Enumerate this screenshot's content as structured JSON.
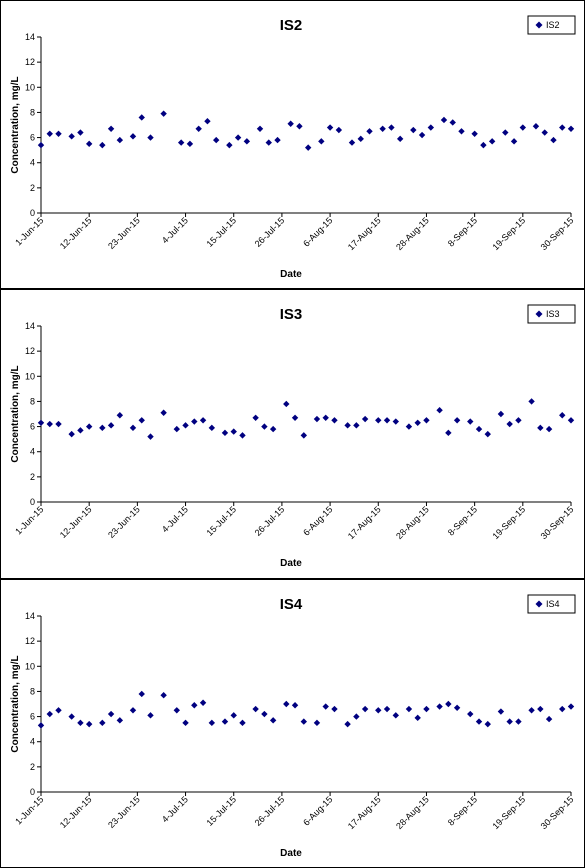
{
  "chart_data": [
    {
      "type": "scatter",
      "title": "IS2",
      "xlabel": "Date",
      "ylabel": "Concentration, mg/L",
      "series": [
        {
          "name": "IS2",
          "color": "#000080",
          "marker": "diamond"
        }
      ],
      "ylim": [
        0,
        14
      ],
      "yticks": [
        0,
        2,
        4,
        6,
        8,
        10,
        12,
        14
      ],
      "xlim": [
        "2015-06-01",
        "2015-09-30"
      ],
      "xtick_labels": [
        "1-Jun-15",
        "12-Jun-15",
        "23-Jun-15",
        "4-Jul-15",
        "15-Jul-15",
        "26-Jul-15",
        "6-Aug-15",
        "17-Aug-15",
        "28-Aug-15",
        "8-Sep-15",
        "19-Sep-15",
        "30-Sep-15"
      ],
      "grid": false,
      "legend_position": "top-right",
      "points": [
        {
          "x": "2015-06-01",
          "y": 5.4
        },
        {
          "x": "2015-06-03",
          "y": 6.3
        },
        {
          "x": "2015-06-05",
          "y": 6.3
        },
        {
          "x": "2015-06-08",
          "y": 6.1
        },
        {
          "x": "2015-06-10",
          "y": 6.4
        },
        {
          "x": "2015-06-12",
          "y": 5.5
        },
        {
          "x": "2015-06-15",
          "y": 5.4
        },
        {
          "x": "2015-06-17",
          "y": 6.7
        },
        {
          "x": "2015-06-19",
          "y": 5.8
        },
        {
          "x": "2015-06-22",
          "y": 6.1
        },
        {
          "x": "2015-06-24",
          "y": 7.6
        },
        {
          "x": "2015-06-26",
          "y": 6.0
        },
        {
          "x": "2015-06-29",
          "y": 7.9
        },
        {
          "x": "2015-07-03",
          "y": 5.6
        },
        {
          "x": "2015-07-05",
          "y": 5.5
        },
        {
          "x": "2015-07-07",
          "y": 6.7
        },
        {
          "x": "2015-07-09",
          "y": 7.3
        },
        {
          "x": "2015-07-11",
          "y": 5.8
        },
        {
          "x": "2015-07-14",
          "y": 5.4
        },
        {
          "x": "2015-07-16",
          "y": 6.0
        },
        {
          "x": "2015-07-18",
          "y": 5.7
        },
        {
          "x": "2015-07-21",
          "y": 6.7
        },
        {
          "x": "2015-07-23",
          "y": 5.6
        },
        {
          "x": "2015-07-25",
          "y": 5.8
        },
        {
          "x": "2015-07-28",
          "y": 7.1
        },
        {
          "x": "2015-07-30",
          "y": 6.9
        },
        {
          "x": "2015-08-01",
          "y": 5.2
        },
        {
          "x": "2015-08-04",
          "y": 5.7
        },
        {
          "x": "2015-08-06",
          "y": 6.8
        },
        {
          "x": "2015-08-08",
          "y": 6.6
        },
        {
          "x": "2015-08-11",
          "y": 5.6
        },
        {
          "x": "2015-08-13",
          "y": 5.9
        },
        {
          "x": "2015-08-15",
          "y": 6.5
        },
        {
          "x": "2015-08-18",
          "y": 6.7
        },
        {
          "x": "2015-08-20",
          "y": 6.8
        },
        {
          "x": "2015-08-22",
          "y": 5.9
        },
        {
          "x": "2015-08-25",
          "y": 6.6
        },
        {
          "x": "2015-08-27",
          "y": 6.2
        },
        {
          "x": "2015-08-29",
          "y": 6.8
        },
        {
          "x": "2015-09-01",
          "y": 7.4
        },
        {
          "x": "2015-09-03",
          "y": 7.2
        },
        {
          "x": "2015-09-05",
          "y": 6.5
        },
        {
          "x": "2015-09-08",
          "y": 6.3
        },
        {
          "x": "2015-09-10",
          "y": 5.4
        },
        {
          "x": "2015-09-12",
          "y": 5.7
        },
        {
          "x": "2015-09-15",
          "y": 6.4
        },
        {
          "x": "2015-09-17",
          "y": 5.7
        },
        {
          "x": "2015-09-19",
          "y": 6.8
        },
        {
          "x": "2015-09-22",
          "y": 6.9
        },
        {
          "x": "2015-09-24",
          "y": 6.4
        },
        {
          "x": "2015-09-26",
          "y": 5.8
        },
        {
          "x": "2015-09-28",
          "y": 6.8
        },
        {
          "x": "2015-09-30",
          "y": 6.7
        }
      ]
    },
    {
      "type": "scatter",
      "title": "IS3",
      "xlabel": "Date",
      "ylabel": "Concentration, mg/L",
      "series": [
        {
          "name": "IS3",
          "color": "#000080",
          "marker": "diamond"
        }
      ],
      "ylim": [
        0,
        14
      ],
      "yticks": [
        0,
        2,
        4,
        6,
        8,
        10,
        12,
        14
      ],
      "xlim": [
        "2015-06-01",
        "2015-09-30"
      ],
      "xtick_labels": [
        "1-Jun-15",
        "12-Jun-15",
        "23-Jun-15",
        "4-Jul-15",
        "15-Jul-15",
        "26-Jul-15",
        "6-Aug-15",
        "17-Aug-15",
        "28-Aug-15",
        "8-Sep-15",
        "19-Sep-15",
        "30-Sep-15"
      ],
      "grid": false,
      "legend_position": "top-right",
      "points": [
        {
          "x": "2015-06-01",
          "y": 6.3
        },
        {
          "x": "2015-06-03",
          "y": 6.2
        },
        {
          "x": "2015-06-05",
          "y": 6.2
        },
        {
          "x": "2015-06-08",
          "y": 5.4
        },
        {
          "x": "2015-06-10",
          "y": 5.7
        },
        {
          "x": "2015-06-12",
          "y": 6.0
        },
        {
          "x": "2015-06-15",
          "y": 5.9
        },
        {
          "x": "2015-06-17",
          "y": 6.1
        },
        {
          "x": "2015-06-19",
          "y": 6.9
        },
        {
          "x": "2015-06-22",
          "y": 5.9
        },
        {
          "x": "2015-06-24",
          "y": 6.5
        },
        {
          "x": "2015-06-26",
          "y": 5.2
        },
        {
          "x": "2015-06-29",
          "y": 7.1
        },
        {
          "x": "2015-07-02",
          "y": 5.8
        },
        {
          "x": "2015-07-04",
          "y": 6.1
        },
        {
          "x": "2015-07-06",
          "y": 6.4
        },
        {
          "x": "2015-07-08",
          "y": 6.5
        },
        {
          "x": "2015-07-10",
          "y": 5.9
        },
        {
          "x": "2015-07-13",
          "y": 5.5
        },
        {
          "x": "2015-07-15",
          "y": 5.6
        },
        {
          "x": "2015-07-17",
          "y": 5.3
        },
        {
          "x": "2015-07-20",
          "y": 6.7
        },
        {
          "x": "2015-07-22",
          "y": 6.0
        },
        {
          "x": "2015-07-24",
          "y": 5.8
        },
        {
          "x": "2015-07-27",
          "y": 7.8
        },
        {
          "x": "2015-07-29",
          "y": 6.7
        },
        {
          "x": "2015-07-31",
          "y": 5.3
        },
        {
          "x": "2015-08-03",
          "y": 6.6
        },
        {
          "x": "2015-08-05",
          "y": 6.7
        },
        {
          "x": "2015-08-07",
          "y": 6.5
        },
        {
          "x": "2015-08-10",
          "y": 6.1
        },
        {
          "x": "2015-08-12",
          "y": 6.1
        },
        {
          "x": "2015-08-14",
          "y": 6.6
        },
        {
          "x": "2015-08-17",
          "y": 6.5
        },
        {
          "x": "2015-08-19",
          "y": 6.5
        },
        {
          "x": "2015-08-21",
          "y": 6.4
        },
        {
          "x": "2015-08-24",
          "y": 6.0
        },
        {
          "x": "2015-08-26",
          "y": 6.3
        },
        {
          "x": "2015-08-28",
          "y": 6.5
        },
        {
          "x": "2015-08-31",
          "y": 7.3
        },
        {
          "x": "2015-09-02",
          "y": 5.5
        },
        {
          "x": "2015-09-04",
          "y": 6.5
        },
        {
          "x": "2015-09-07",
          "y": 6.4
        },
        {
          "x": "2015-09-09",
          "y": 5.8
        },
        {
          "x": "2015-09-11",
          "y": 5.4
        },
        {
          "x": "2015-09-14",
          "y": 7.0
        },
        {
          "x": "2015-09-16",
          "y": 6.2
        },
        {
          "x": "2015-09-18",
          "y": 6.5
        },
        {
          "x": "2015-09-21",
          "y": 8.0
        },
        {
          "x": "2015-09-23",
          "y": 5.9
        },
        {
          "x": "2015-09-25",
          "y": 5.8
        },
        {
          "x": "2015-09-28",
          "y": 6.9
        },
        {
          "x": "2015-09-30",
          "y": 6.5
        }
      ]
    },
    {
      "type": "scatter",
      "title": "IS4",
      "xlabel": "Date",
      "ylabel": "Concentration, mg/L",
      "series": [
        {
          "name": "IS4",
          "color": "#000080",
          "marker": "diamond"
        }
      ],
      "ylim": [
        0,
        14
      ],
      "yticks": [
        0,
        2,
        4,
        6,
        8,
        10,
        12,
        14
      ],
      "xlim": [
        "2015-06-01",
        "2015-09-30"
      ],
      "xtick_labels": [
        "1-Jun-15",
        "12-Jun-15",
        "23-Jun-15",
        "4-Jul-15",
        "15-Jul-15",
        "26-Jul-15",
        "6-Aug-15",
        "17-Aug-15",
        "28-Aug-15",
        "8-Sep-15",
        "19-Sep-15",
        "30-Sep-15"
      ],
      "grid": false,
      "legend_position": "top-right",
      "points": [
        {
          "x": "2015-06-01",
          "y": 5.3
        },
        {
          "x": "2015-06-03",
          "y": 6.2
        },
        {
          "x": "2015-06-05",
          "y": 6.5
        },
        {
          "x": "2015-06-08",
          "y": 6.0
        },
        {
          "x": "2015-06-10",
          "y": 5.5
        },
        {
          "x": "2015-06-12",
          "y": 5.4
        },
        {
          "x": "2015-06-15",
          "y": 5.5
        },
        {
          "x": "2015-06-17",
          "y": 6.2
        },
        {
          "x": "2015-06-19",
          "y": 5.7
        },
        {
          "x": "2015-06-22",
          "y": 6.5
        },
        {
          "x": "2015-06-24",
          "y": 7.8
        },
        {
          "x": "2015-06-26",
          "y": 6.1
        },
        {
          "x": "2015-06-29",
          "y": 7.7
        },
        {
          "x": "2015-07-02",
          "y": 6.5
        },
        {
          "x": "2015-07-04",
          "y": 5.5
        },
        {
          "x": "2015-07-06",
          "y": 6.9
        },
        {
          "x": "2015-07-08",
          "y": 7.1
        },
        {
          "x": "2015-07-10",
          "y": 5.5
        },
        {
          "x": "2015-07-13",
          "y": 5.6
        },
        {
          "x": "2015-07-15",
          "y": 6.1
        },
        {
          "x": "2015-07-17",
          "y": 5.5
        },
        {
          "x": "2015-07-20",
          "y": 6.6
        },
        {
          "x": "2015-07-22",
          "y": 6.2
        },
        {
          "x": "2015-07-24",
          "y": 5.7
        },
        {
          "x": "2015-07-27",
          "y": 7.0
        },
        {
          "x": "2015-07-29",
          "y": 6.9
        },
        {
          "x": "2015-07-31",
          "y": 5.6
        },
        {
          "x": "2015-08-03",
          "y": 5.5
        },
        {
          "x": "2015-08-05",
          "y": 6.8
        },
        {
          "x": "2015-08-07",
          "y": 6.6
        },
        {
          "x": "2015-08-10",
          "y": 5.4
        },
        {
          "x": "2015-08-12",
          "y": 6.0
        },
        {
          "x": "2015-08-14",
          "y": 6.6
        },
        {
          "x": "2015-08-17",
          "y": 6.5
        },
        {
          "x": "2015-08-19",
          "y": 6.6
        },
        {
          "x": "2015-08-21",
          "y": 6.1
        },
        {
          "x": "2015-08-24",
          "y": 6.6
        },
        {
          "x": "2015-08-26",
          "y": 5.9
        },
        {
          "x": "2015-08-28",
          "y": 6.6
        },
        {
          "x": "2015-08-31",
          "y": 6.8
        },
        {
          "x": "2015-09-02",
          "y": 7.0
        },
        {
          "x": "2015-09-04",
          "y": 6.7
        },
        {
          "x": "2015-09-07",
          "y": 6.2
        },
        {
          "x": "2015-09-09",
          "y": 5.6
        },
        {
          "x": "2015-09-11",
          "y": 5.4
        },
        {
          "x": "2015-09-14",
          "y": 6.4
        },
        {
          "x": "2015-09-16",
          "y": 5.6
        },
        {
          "x": "2015-09-18",
          "y": 5.6
        },
        {
          "x": "2015-09-21",
          "y": 6.5
        },
        {
          "x": "2015-09-23",
          "y": 6.6
        },
        {
          "x": "2015-09-25",
          "y": 5.8
        },
        {
          "x": "2015-09-28",
          "y": 6.6
        },
        {
          "x": "2015-09-30",
          "y": 6.8
        }
      ]
    }
  ]
}
